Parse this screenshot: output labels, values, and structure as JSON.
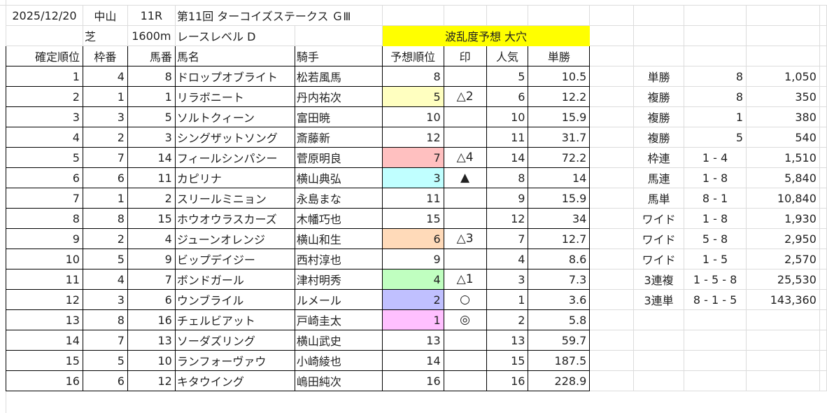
{
  "race": {
    "date": "2025/12/20",
    "venue": "中山",
    "race_no": "11R",
    "title": "第11回 ターコイズステークス ＧⅢ",
    "surface": "芝",
    "distance": "1600m",
    "level": "レースレベル D",
    "prediction_banner": "波乱度予想 大穴"
  },
  "headers": [
    "確定順位",
    "枠番",
    "馬番",
    "馬名",
    "騎手",
    "予想順位",
    "印",
    "人気",
    "単勝"
  ],
  "rows": [
    {
      "pos": "1",
      "waku": "4",
      "uma": "8",
      "name": "ドロップオブライト",
      "jockey": "松若風馬",
      "pred": "8",
      "mark": "",
      "pop": "5",
      "odds": "10.5",
      "color": ""
    },
    {
      "pos": "2",
      "waku": "1",
      "uma": "1",
      "name": "リラボニート",
      "jockey": "丹内祐次",
      "pred": "5",
      "mark": "△2",
      "pop": "6",
      "odds": "12.2",
      "color": "#ffffc0"
    },
    {
      "pos": "3",
      "waku": "3",
      "uma": "5",
      "name": "ソルトクィーン",
      "jockey": "富田暁",
      "pred": "10",
      "mark": "",
      "pop": "10",
      "odds": "15.9",
      "color": ""
    },
    {
      "pos": "4",
      "waku": "2",
      "uma": "3",
      "name": "シングザットソング",
      "jockey": "斎藤新",
      "pred": "12",
      "mark": "",
      "pop": "11",
      "odds": "31.7",
      "color": ""
    },
    {
      "pos": "5",
      "waku": "7",
      "uma": "14",
      "name": "フィールシンパシー",
      "jockey": "菅原明良",
      "pred": "7",
      "mark": "△4",
      "pop": "14",
      "odds": "72.2",
      "color": "#ffc0c0"
    },
    {
      "pos": "6",
      "waku": "6",
      "uma": "11",
      "name": "カピリナ",
      "jockey": "横山典弘",
      "pred": "3",
      "mark": "▲",
      "pop": "8",
      "odds": "14",
      "color": "#c0ffff"
    },
    {
      "pos": "7",
      "waku": "1",
      "uma": "2",
      "name": "スリールミニョン",
      "jockey": "永島まな",
      "pred": "11",
      "mark": "",
      "pop": "9",
      "odds": "15.9",
      "color": ""
    },
    {
      "pos": "8",
      "waku": "8",
      "uma": "15",
      "name": "ホウオウラスカーズ",
      "jockey": "木幡巧也",
      "pred": "15",
      "mark": "",
      "pop": "12",
      "odds": "34",
      "color": ""
    },
    {
      "pos": "9",
      "waku": "2",
      "uma": "4",
      "name": "ジューンオレンジ",
      "jockey": "横山和生",
      "pred": "6",
      "mark": "△3",
      "pop": "7",
      "odds": "12.7",
      "color": "#ffdab9"
    },
    {
      "pos": "10",
      "waku": "5",
      "uma": "9",
      "name": "ビップデイジー",
      "jockey": "西村淳也",
      "pred": "9",
      "mark": "",
      "pop": "4",
      "odds": "8.6",
      "color": ""
    },
    {
      "pos": "11",
      "waku": "4",
      "uma": "7",
      "name": "ボンドガール",
      "jockey": "津村明秀",
      "pred": "4",
      "mark": "△1",
      "pop": "3",
      "odds": "7.3",
      "color": "#c0ffc0"
    },
    {
      "pos": "12",
      "waku": "3",
      "uma": "6",
      "name": "ウンブライル",
      "jockey": "ルメール",
      "pred": "2",
      "mark": "○",
      "pop": "1",
      "odds": "3.6",
      "color": "#c0c0ff"
    },
    {
      "pos": "13",
      "waku": "8",
      "uma": "16",
      "name": "チェルビアット",
      "jockey": "戸崎圭太",
      "pred": "1",
      "mark": "◎",
      "pop": "2",
      "odds": "5.8",
      "color": "#ffc0ff"
    },
    {
      "pos": "14",
      "waku": "7",
      "uma": "13",
      "name": "ソーダズリング",
      "jockey": "横山武史",
      "pred": "13",
      "mark": "",
      "pop": "13",
      "odds": "59.7",
      "color": ""
    },
    {
      "pos": "15",
      "waku": "5",
      "uma": "10",
      "name": "ランフォーヴァウ",
      "jockey": "小崎綾也",
      "pred": "14",
      "mark": "",
      "pop": "15",
      "odds": "187.5",
      "color": ""
    },
    {
      "pos": "16",
      "waku": "6",
      "uma": "12",
      "name": "キタウイング",
      "jockey": "嶋田純次",
      "pred": "16",
      "mark": "",
      "pop": "16",
      "odds": "228.9",
      "color": ""
    }
  ],
  "payouts": [
    {
      "type": "単勝",
      "combo": "8",
      "amount": "1,050"
    },
    {
      "type": "複勝",
      "combo": "8",
      "amount": "350"
    },
    {
      "type": "複勝",
      "combo": "1",
      "amount": "380"
    },
    {
      "type": "複勝",
      "combo": "5",
      "amount": "540"
    },
    {
      "type": "枠連",
      "combo": "1 - 4",
      "amount": "1,510"
    },
    {
      "type": "馬連",
      "combo": "1 - 8",
      "amount": "5,840"
    },
    {
      "type": "馬単",
      "combo": "8 - 1",
      "amount": "10,840"
    },
    {
      "type": "ワイド",
      "combo": "1 - 8",
      "amount": "1,930"
    },
    {
      "type": "ワイド",
      "combo": "5 - 8",
      "amount": "2,950"
    },
    {
      "type": "ワイド",
      "combo": "1 - 5",
      "amount": "2,570"
    },
    {
      "type": "3連複",
      "combo": "1 - 5 - 8",
      "amount": "25,530"
    },
    {
      "type": "3連単",
      "combo": "8 - 1 - 5",
      "amount": "143,360"
    }
  ]
}
